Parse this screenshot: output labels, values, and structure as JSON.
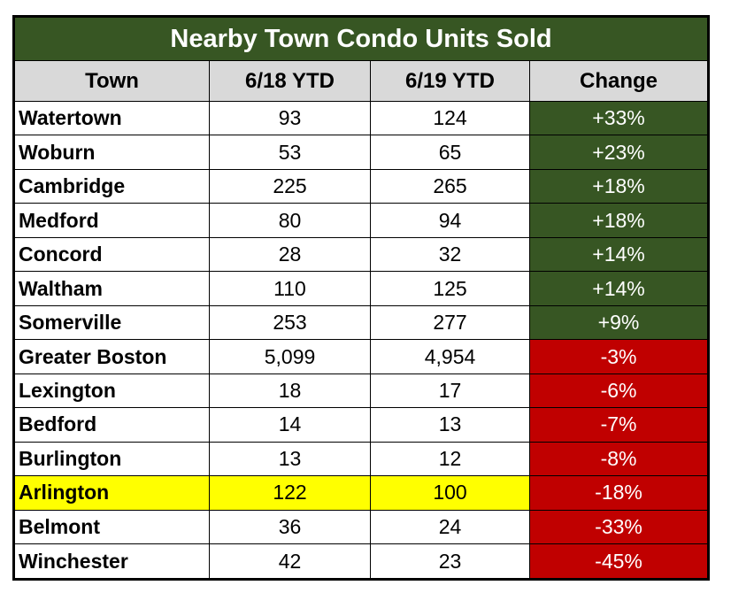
{
  "colors": {
    "title_bg": "#375623",
    "header_bg": "#D9D9D9",
    "positive_bg": "#375623",
    "negative_bg": "#C00000",
    "highlight_bg": "#FFFF00",
    "text_light": "#FFFFFF",
    "text_dark": "#000000",
    "border": "#000000"
  },
  "chart_data": {
    "type": "table",
    "title": "Nearby Town Condo Units Sold",
    "columns": [
      "Town",
      "6/18 YTD",
      "6/19 YTD",
      "Change"
    ],
    "legend_semantics": {
      "up": "change cell shown with dark green background and white text",
      "down": "change cell shown with dark red background and white text",
      "highlight": "Arlington row emphasized with yellow background"
    },
    "rows": [
      {
        "town": "Watertown",
        "ytd_6_18": "93",
        "ytd_6_19": "124",
        "change": "+33%",
        "trend": "up",
        "highlighted": false
      },
      {
        "town": "Woburn",
        "ytd_6_18": "53",
        "ytd_6_19": "65",
        "change": "+23%",
        "trend": "up",
        "highlighted": false
      },
      {
        "town": "Cambridge",
        "ytd_6_18": "225",
        "ytd_6_19": "265",
        "change": "+18%",
        "trend": "up",
        "highlighted": false
      },
      {
        "town": "Medford",
        "ytd_6_18": "80",
        "ytd_6_19": "94",
        "change": "+18%",
        "trend": "up",
        "highlighted": false
      },
      {
        "town": "Concord",
        "ytd_6_18": "28",
        "ytd_6_19": "32",
        "change": "+14%",
        "trend": "up",
        "highlighted": false
      },
      {
        "town": "Waltham",
        "ytd_6_18": "110",
        "ytd_6_19": "125",
        "change": "+14%",
        "trend": "up",
        "highlighted": false
      },
      {
        "town": "Somerville",
        "ytd_6_18": "253",
        "ytd_6_19": "277",
        "change": "+9%",
        "trend": "up",
        "highlighted": false
      },
      {
        "town": "Greater Boston",
        "ytd_6_18": "5,099",
        "ytd_6_19": "4,954",
        "change": "-3%",
        "trend": "down",
        "highlighted": false
      },
      {
        "town": "Lexington",
        "ytd_6_18": "18",
        "ytd_6_19": "17",
        "change": "-6%",
        "trend": "down",
        "highlighted": false
      },
      {
        "town": "Bedford",
        "ytd_6_18": "14",
        "ytd_6_19": "13",
        "change": "-7%",
        "trend": "down",
        "highlighted": false
      },
      {
        "town": "Burlington",
        "ytd_6_18": "13",
        "ytd_6_19": "12",
        "change": "-8%",
        "trend": "down",
        "highlighted": false
      },
      {
        "town": "Arlington",
        "ytd_6_18": "122",
        "ytd_6_19": "100",
        "change": "-18%",
        "trend": "down",
        "highlighted": true
      },
      {
        "town": "Belmont",
        "ytd_6_18": "36",
        "ytd_6_19": "24",
        "change": "-33%",
        "trend": "down",
        "highlighted": false
      },
      {
        "town": "Winchester",
        "ytd_6_18": "42",
        "ytd_6_19": "23",
        "change": "-45%",
        "trend": "down",
        "highlighted": false
      }
    ]
  }
}
